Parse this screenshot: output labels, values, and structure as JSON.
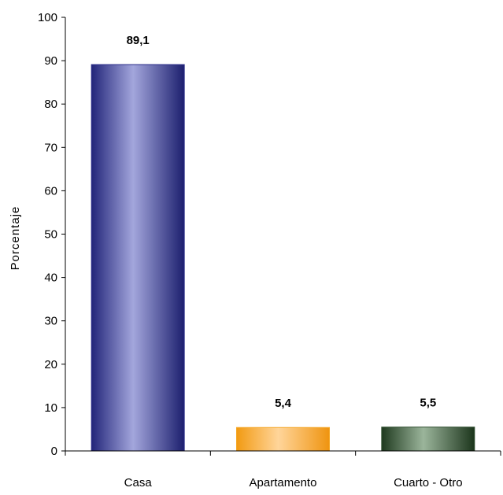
{
  "chart_data": {
    "type": "bar",
    "title": "",
    "xlabel": "",
    "ylabel": "Porcentaje",
    "ylim": [
      0,
      100
    ],
    "yticks": [
      0,
      10,
      20,
      30,
      40,
      50,
      60,
      70,
      80,
      90,
      100
    ],
    "categories": [
      "Casa",
      "Apartamento",
      "Cuarto - Otro"
    ],
    "values": [
      89.1,
      5.4,
      5.5
    ],
    "data_labels": [
      "89,1",
      "5,4",
      "5,5"
    ],
    "bar_colors": [
      "#2b2f8a",
      "#f5a623",
      "#2f4f2f"
    ],
    "grid": false,
    "legend": "none"
  }
}
